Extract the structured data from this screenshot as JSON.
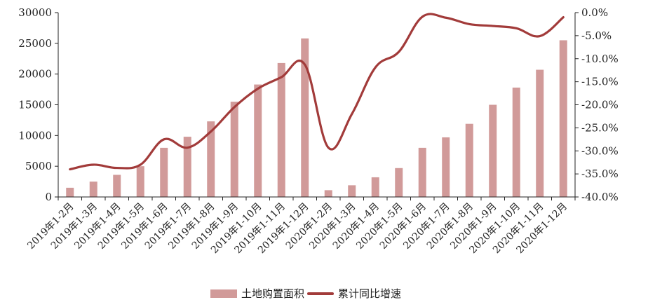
{
  "chart_data": {
    "type": "bar+line",
    "categories": [
      "2019年1-2月",
      "2019年1-3月",
      "2019年1-4月",
      "2019年1-5月",
      "2019年1-6月",
      "2019年1-7月",
      "2019年1-8月",
      "2019年1-9月",
      "2019年1-10月",
      "2019年1-11月",
      "2019年1-12月",
      "2020年1-2月",
      "2020年1-3月",
      "2020年1-4月",
      "2020年1-5月",
      "2020年1-6月",
      "2020年1-7月",
      "2020年1-8月",
      "2020年1-9月",
      "2020年1-10月",
      "2020年1-11月",
      "2020年1-12月"
    ],
    "series": [
      {
        "name": "土地购置面积",
        "type": "bar",
        "axis": "left",
        "color": "#d19a99",
        "values": [
          1500,
          2500,
          3600,
          5000,
          8000,
          9800,
          12300,
          15500,
          18300,
          21800,
          25800,
          1100,
          1900,
          3200,
          4700,
          8000,
          9700,
          11900,
          15000,
          17800,
          20700,
          25500
        ]
      },
      {
        "name": "累计同比增速",
        "type": "line",
        "axis": "right",
        "color": "#a23b3a",
        "values": [
          -34.0,
          -33.0,
          -33.7,
          -33.0,
          -27.5,
          -29.3,
          -25.8,
          -20.5,
          -16.5,
          -14.0,
          -11.3,
          -29.3,
          -22.0,
          -11.9,
          -8.5,
          -0.9,
          -1.1,
          -2.5,
          -2.9,
          -3.4,
          -5.1,
          -1.0
        ]
      }
    ],
    "y_left": {
      "min": 0,
      "max": 30000,
      "ticks": [
        "0",
        "5000",
        "10000",
        "15000",
        "20000",
        "25000",
        "30000"
      ]
    },
    "y_right": {
      "min": -40,
      "max": 0,
      "ticks": [
        "-40.0%",
        "-35.0%",
        "-30.0%",
        "-25.0%",
        "-20.0%",
        "-15.0%",
        "-10.0%",
        "-5.0%",
        "0.0%"
      ]
    },
    "grid": false,
    "legend_position": "bottom"
  }
}
